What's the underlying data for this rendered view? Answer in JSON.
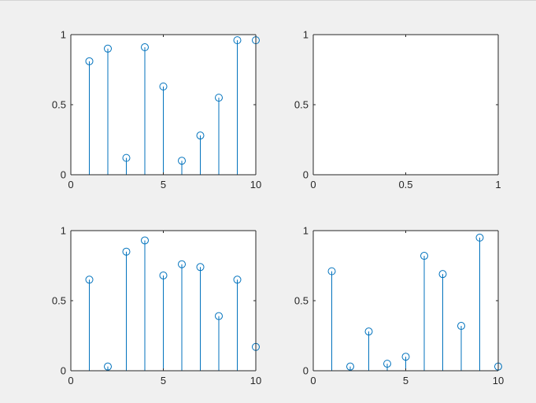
{
  "chart_data": [
    {
      "type": "stem",
      "title": "",
      "xlabel": "",
      "ylabel": "",
      "xlim": [
        0,
        10
      ],
      "ylim": [
        0,
        1
      ],
      "xticks": [
        0,
        5,
        10
      ],
      "xtick_labels": [
        "0",
        "5",
        "10"
      ],
      "yticks": [
        0,
        0.5,
        1
      ],
      "ytick_labels": [
        "0",
        "0.5",
        "1"
      ],
      "color": "#0072bd",
      "x": [
        1,
        2,
        3,
        4,
        5,
        6,
        7,
        8,
        9,
        10
      ],
      "y": [
        0.81,
        0.9,
        0.12,
        0.91,
        0.63,
        0.1,
        0.28,
        0.55,
        0.96,
        0.96
      ]
    },
    {
      "type": "empty",
      "title": "",
      "xlabel": "",
      "ylabel": "",
      "xlim": [
        0,
        1
      ],
      "ylim": [
        0,
        1
      ],
      "xticks": [
        0,
        0.5,
        1
      ],
      "xtick_labels": [
        "0",
        "0.5",
        "1"
      ],
      "yticks": [
        0,
        0.5,
        1
      ],
      "ytick_labels": [
        "0",
        "0.5",
        "1"
      ],
      "color": "#0072bd",
      "x": [],
      "y": []
    },
    {
      "type": "stem",
      "title": "",
      "xlabel": "",
      "ylabel": "",
      "xlim": [
        0,
        10
      ],
      "ylim": [
        0,
        1
      ],
      "xticks": [
        0,
        5,
        10
      ],
      "xtick_labels": [
        "0",
        "5",
        "10"
      ],
      "yticks": [
        0,
        0.5,
        1
      ],
      "ytick_labels": [
        "0",
        "0.5",
        "1"
      ],
      "color": "#0072bd",
      "x": [
        1,
        2,
        3,
        4,
        5,
        6,
        7,
        8,
        9,
        10
      ],
      "y": [
        0.65,
        0.03,
        0.85,
        0.93,
        0.68,
        0.76,
        0.74,
        0.39,
        0.65,
        0.17
      ]
    },
    {
      "type": "stem",
      "title": "",
      "xlabel": "",
      "ylabel": "",
      "xlim": [
        0,
        10
      ],
      "ylim": [
        0,
        1
      ],
      "xticks": [
        0,
        5,
        10
      ],
      "xtick_labels": [
        "0",
        "5",
        "10"
      ],
      "yticks": [
        0,
        0.5,
        1
      ],
      "ytick_labels": [
        "0",
        "0.5",
        "1"
      ],
      "color": "#0072bd",
      "x": [
        1,
        2,
        3,
        4,
        5,
        6,
        7,
        8,
        9,
        10
      ],
      "y": [
        0.71,
        0.03,
        0.28,
        0.05,
        0.1,
        0.82,
        0.69,
        0.32,
        0.95,
        0.03
      ]
    }
  ]
}
